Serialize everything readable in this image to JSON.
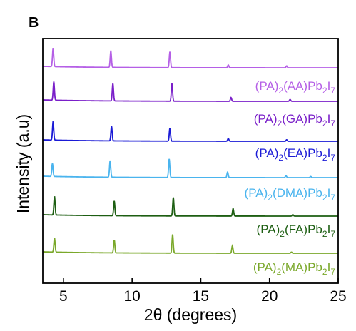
{
  "chart_data": {
    "type": "line",
    "panel_label": "B",
    "xlabel": "2θ (degrees)",
    "ylabel": "Intensity (a.u)",
    "xlim": [
      3.5,
      25
    ],
    "xticks": [
      5,
      10,
      15,
      20,
      25
    ],
    "yticks_shown": false,
    "grid": false,
    "legend": "inline labels right of each trace",
    "series": [
      {
        "name_parts": [
          {
            "t": "(PA)",
            "sub": false
          },
          {
            "t": "2",
            "sub": true
          },
          {
            "t": "(AA)Pb",
            "sub": false
          },
          {
            "t": "2",
            "sub": true
          },
          {
            "t": "I",
            "sub": false
          },
          {
            "t": "7",
            "sub": true
          }
        ],
        "color": "#b55fe6",
        "peaks": [
          [
            4.25,
            1.0
          ],
          [
            8.45,
            0.9
          ],
          [
            12.75,
            0.85
          ],
          [
            17.0,
            0.15
          ],
          [
            21.25,
            0.1
          ]
        ]
      },
      {
        "name_parts": [
          {
            "t": "(PA)",
            "sub": false
          },
          {
            "t": "2",
            "sub": true
          },
          {
            "t": "(GA)Pb",
            "sub": false
          },
          {
            "t": "2",
            "sub": true
          },
          {
            "t": "I",
            "sub": false
          },
          {
            "t": "7",
            "sub": true
          }
        ],
        "color": "#7a1fc9",
        "peaks": [
          [
            4.3,
            1.0
          ],
          [
            8.6,
            0.95
          ],
          [
            12.9,
            0.95
          ],
          [
            17.2,
            0.2
          ],
          [
            21.5,
            0.1
          ]
        ]
      },
      {
        "name_parts": [
          {
            "t": "(PA)",
            "sub": false
          },
          {
            "t": "2",
            "sub": true
          },
          {
            "t": "(EA)Pb",
            "sub": false
          },
          {
            "t": "2",
            "sub": true
          },
          {
            "t": "I",
            "sub": false
          },
          {
            "t": "7",
            "sub": true
          }
        ],
        "color": "#1a1ad6",
        "peaks": [
          [
            4.25,
            1.0
          ],
          [
            8.5,
            0.8
          ],
          [
            12.75,
            0.7
          ],
          [
            17.0,
            0.15
          ],
          [
            21.25,
            0.08
          ]
        ]
      },
      {
        "name_parts": [
          {
            "t": "(PA)",
            "sub": false
          },
          {
            "t": "2",
            "sub": true
          },
          {
            "t": "(DMA)Pb",
            "sub": false
          },
          {
            "t": "2",
            "sub": true
          },
          {
            "t": "I",
            "sub": false
          },
          {
            "t": "7",
            "sub": true
          }
        ],
        "color": "#4ab4ee",
        "peaks": [
          [
            4.2,
            0.7
          ],
          [
            8.4,
            0.9
          ],
          [
            12.7,
            1.0
          ],
          [
            16.95,
            0.3
          ],
          [
            21.2,
            0.1
          ],
          [
            23.0,
            0.06
          ]
        ]
      },
      {
        "name_parts": [
          {
            "t": "(PA)",
            "sub": false
          },
          {
            "t": "2",
            "sub": true
          },
          {
            "t": "(FA)Pb",
            "sub": false
          },
          {
            "t": "2",
            "sub": true
          },
          {
            "t": "I",
            "sub": false
          },
          {
            "t": "7",
            "sub": true
          }
        ],
        "color": "#1d5e12",
        "peaks": [
          [
            4.35,
            1.0
          ],
          [
            8.7,
            0.8
          ],
          [
            13.0,
            1.0
          ],
          [
            17.35,
            0.4
          ],
          [
            21.7,
            0.08
          ]
        ]
      },
      {
        "name_parts": [
          {
            "t": "(PA)",
            "sub": false
          },
          {
            "t": "2",
            "sub": true
          },
          {
            "t": "(MA)Pb",
            "sub": false
          },
          {
            "t": "2",
            "sub": true
          },
          {
            "t": "I",
            "sub": false
          },
          {
            "t": "7",
            "sub": true
          }
        ],
        "color": "#7aa82a",
        "peaks": [
          [
            4.35,
            0.75
          ],
          [
            8.7,
            0.7
          ],
          [
            12.95,
            1.0
          ],
          [
            17.3,
            0.4
          ],
          [
            21.6,
            0.06
          ]
        ]
      }
    ]
  }
}
